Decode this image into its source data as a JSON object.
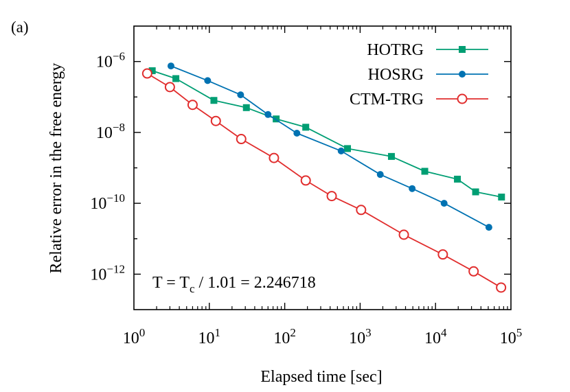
{
  "panel_label": "(a)",
  "annotation": {
    "lhs": "T = T",
    "sub": "c",
    "rhs": " / 1.01 = 2.246718"
  },
  "chart_data": {
    "type": "line",
    "xlabel": "Elapsed time [sec]",
    "ylabel": "Relative error in the free energy",
    "xscale": "log",
    "yscale": "log",
    "xlim": [
      1,
      100000
    ],
    "ylim": [
      1e-13,
      1e-05
    ],
    "x_ticks": [
      {
        "value": 1,
        "base": "10",
        "exp": "0"
      },
      {
        "value": 10,
        "base": "10",
        "exp": "1"
      },
      {
        "value": 100,
        "base": "10",
        "exp": "2"
      },
      {
        "value": 1000,
        "base": "10",
        "exp": "3"
      },
      {
        "value": 10000,
        "base": "10",
        "exp": "4"
      },
      {
        "value": 100000,
        "base": "10",
        "exp": "5"
      }
    ],
    "y_ticks": [
      {
        "value": 1e-06,
        "base": "10",
        "exp": "−6"
      },
      {
        "value": 1e-08,
        "base": "10",
        "exp": "−8"
      },
      {
        "value": 1e-10,
        "base": "10",
        "exp": "−10"
      },
      {
        "value": 1e-12,
        "base": "10",
        "exp": "−12"
      }
    ],
    "legend_position": "top-right",
    "grid": false,
    "series": [
      {
        "name": "HOTRG",
        "color": "#009e73",
        "marker": "filled-square",
        "x": [
          1.75,
          3.6,
          11.5,
          31,
          77,
          190,
          680,
          2600,
          7200,
          19500,
          34000,
          75000
        ],
        "y": [
          5.5e-07,
          3.3e-07,
          8e-08,
          5e-08,
          2.4e-08,
          1.4e-08,
          3.5e-09,
          2.1e-09,
          8e-10,
          4.8e-10,
          2.1e-10,
          1.5e-10
        ]
      },
      {
        "name": "HOSRG",
        "color": "#0072b2",
        "marker": "filled-circle",
        "x": [
          3.1,
          9.5,
          26,
          60,
          145,
          560,
          1850,
          4900,
          13000,
          51000
        ],
        "y": [
          7.5e-07,
          2.9e-07,
          1.15e-07,
          3.2e-08,
          9.5e-09,
          3e-09,
          6.5e-10,
          2.6e-10,
          1e-10,
          2.1e-11
        ]
      },
      {
        "name": "CTM-TRG",
        "color": "#e12d2d",
        "marker": "open-circle",
        "x": [
          1.5,
          3.0,
          6.0,
          12.2,
          26.5,
          72,
          190,
          420,
          1030,
          3800,
          12500,
          32000,
          74000
        ],
        "y": [
          4.6e-07,
          1.9e-07,
          6e-08,
          2.1e-08,
          6.5e-09,
          1.9e-09,
          4.4e-10,
          1.6e-10,
          6.5e-11,
          1.3e-11,
          3.6e-12,
          1.2e-12,
          4.2e-13
        ]
      }
    ]
  }
}
